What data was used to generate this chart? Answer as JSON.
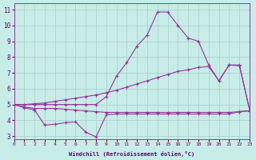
{
  "xlabel": "Windchill (Refroidissement éolien,°C)",
  "background_color": "#c8ece8",
  "grid_color": "#a8ccc8",
  "line_color": "#993399",
  "xlim": [
    0,
    23
  ],
  "ylim": [
    2.8,
    11.4
  ],
  "yticks": [
    3,
    4,
    5,
    6,
    7,
    8,
    9,
    10,
    11
  ],
  "xticks": [
    0,
    1,
    2,
    3,
    4,
    5,
    6,
    7,
    8,
    9,
    10,
    11,
    12,
    13,
    14,
    15,
    16,
    17,
    18,
    19,
    20,
    21,
    22,
    23
  ],
  "line1_x": [
    0,
    1,
    2,
    3,
    4,
    5,
    6,
    7,
    8,
    9,
    10,
    11,
    12,
    13,
    14,
    15,
    16,
    17,
    18,
    19,
    20,
    21,
    22,
    23
  ],
  "line1_y": [
    5.0,
    4.85,
    4.75,
    4.75,
    4.75,
    4.7,
    4.65,
    4.6,
    4.55,
    4.5,
    4.5,
    4.5,
    4.5,
    4.5,
    4.5,
    4.5,
    4.5,
    4.5,
    4.5,
    4.5,
    4.5,
    4.5,
    4.55,
    4.6
  ],
  "line2_x": [
    0,
    1,
    2,
    3,
    4,
    5,
    6,
    7,
    8,
    9,
    10,
    11,
    12,
    13,
    14,
    15,
    16,
    17,
    18,
    19,
    20,
    21,
    22,
    23
  ],
  "line2_y": [
    5.0,
    4.8,
    4.65,
    3.7,
    3.75,
    3.85,
    3.9,
    3.25,
    2.95,
    4.35,
    4.4,
    4.4,
    4.4,
    4.4,
    4.4,
    4.4,
    4.4,
    4.4,
    4.4,
    4.4,
    4.4,
    4.4,
    4.55,
    4.6
  ],
  "line3_x": [
    0,
    1,
    2,
    3,
    4,
    5,
    6,
    7,
    8,
    9,
    10,
    11,
    12,
    13,
    14,
    15,
    16,
    17,
    18,
    19,
    20,
    21,
    22,
    23
  ],
  "line3_y": [
    5.0,
    5.0,
    5.05,
    5.1,
    5.2,
    5.3,
    5.4,
    5.5,
    5.6,
    5.75,
    5.9,
    6.1,
    6.3,
    6.5,
    6.7,
    6.9,
    7.1,
    7.2,
    7.35,
    7.4,
    6.5,
    7.5,
    7.5,
    4.65
  ],
  "line4_x": [
    0,
    1,
    2,
    3,
    4,
    5,
    6,
    7,
    8,
    9,
    10,
    11,
    12,
    13,
    14,
    15,
    16,
    17,
    18,
    19,
    20,
    21,
    22,
    23
  ],
  "line4_y": [
    5.0,
    5.0,
    5.0,
    5.0,
    5.0,
    5.0,
    5.0,
    5.0,
    5.0,
    5.5,
    6.8,
    7.65,
    8.7,
    9.4,
    10.85,
    10.85,
    10.0,
    9.2,
    9.0,
    7.5,
    6.5,
    7.5,
    7.45,
    4.65
  ]
}
